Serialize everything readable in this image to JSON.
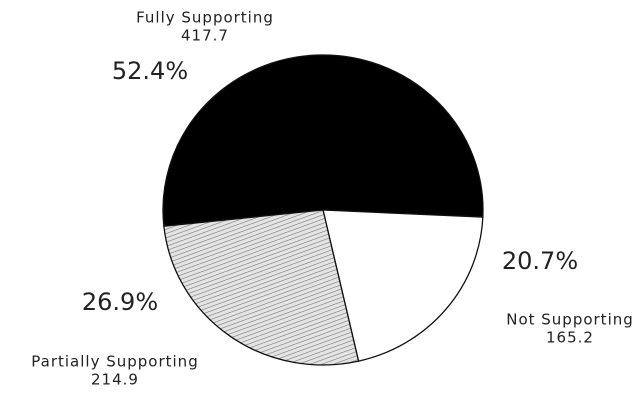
{
  "chart_data": {
    "type": "pie",
    "categories": [
      "Fully Supporting",
      "Not Supporting",
      "Partially Supporting"
    ],
    "values": [
      417.7,
      165.2,
      214.9
    ],
    "percentages": [
      52.4,
      20.7,
      26.9
    ],
    "percentage_labels": [
      "52.4%",
      "20.7%",
      "26.9%"
    ],
    "colors": [
      "#000000",
      "#ffffff",
      "#c8c8c8"
    ]
  }
}
